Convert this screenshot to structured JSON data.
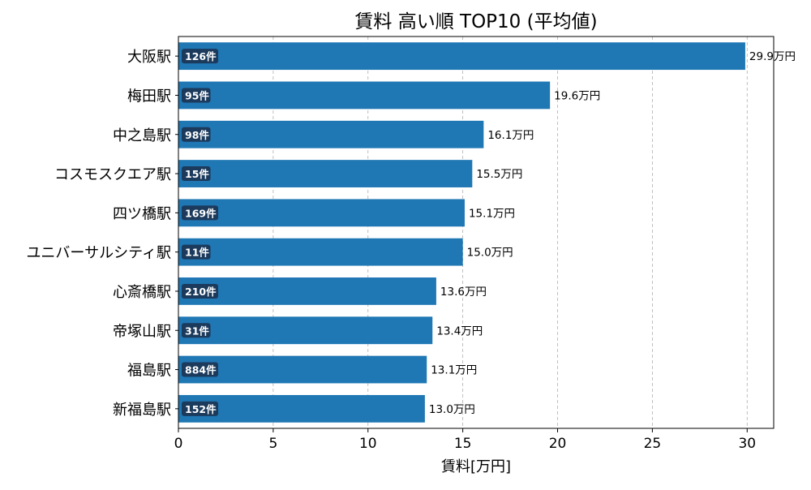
{
  "chart_data": {
    "type": "bar",
    "orientation": "horizontal",
    "title": "賃料 高い順 TOP10 (平均値)",
    "xlabel": "賃料[万円]",
    "ylabel": "",
    "xlim": [
      0,
      31.4
    ],
    "xticks": [
      0,
      5,
      10,
      15,
      20,
      25,
      30
    ],
    "grid": "x-dashed",
    "bar_color": "#1f77b4",
    "badge_color": "#1b3a5c",
    "value_unit": "万円",
    "categories": [
      "大阪駅",
      "梅田駅",
      "中之島駅",
      "コスモスクエア駅",
      "四ツ橋駅",
      "ユニバーサルシティ駅",
      "心斎橋駅",
      "帝塚山駅",
      "福島駅",
      "新福島駅"
    ],
    "values": [
      29.9,
      19.6,
      16.1,
      15.5,
      15.1,
      15.0,
      13.6,
      13.4,
      13.1,
      13.0
    ],
    "value_labels": [
      "29.9万円",
      "19.6万円",
      "16.1万円",
      "15.5万円",
      "15.1万円",
      "15.0万円",
      "13.6万円",
      "13.4万円",
      "13.1万円",
      "13.0万円"
    ],
    "counts": [
      "126件",
      "95件",
      "98件",
      "15件",
      "169件",
      "11件",
      "210件",
      "31件",
      "884件",
      "152件"
    ]
  }
}
